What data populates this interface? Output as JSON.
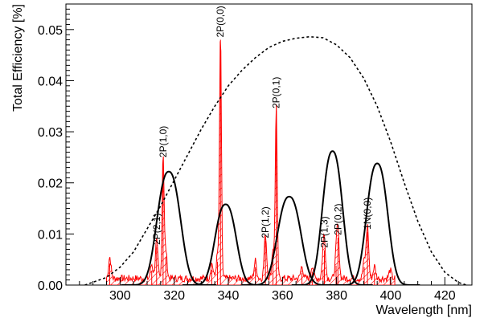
{
  "chart_data": {
    "type": "line",
    "xlabel": "Wavelength [nm]",
    "ylabel": "Total Efficiency [%]",
    "xlim": [
      280,
      430
    ],
    "ylim": [
      0,
      0.055
    ],
    "x_ticks": [
      300,
      320,
      340,
      360,
      380,
      400,
      420
    ],
    "y_ticks": [
      0.0,
      0.01,
      0.02,
      0.03,
      0.04,
      0.05
    ],
    "x_tick_labels": [
      "300",
      "320",
      "340",
      "360",
      "380",
      "400",
      "420"
    ],
    "y_tick_labels": [
      "0.00",
      "0.01",
      "0.02",
      "0.03",
      "0.04",
      "0.05"
    ],
    "grid": false,
    "colors": {
      "spectrum": "#ff0000",
      "filters": "#000000",
      "envelope": "#000000"
    },
    "filter_curves": [
      {
        "center": 318,
        "peak": 0.0222,
        "sigma": 4.2
      },
      {
        "center": 339,
        "peak": 0.0158,
        "sigma": 3.8
      },
      {
        "center": 362.5,
        "peak": 0.0173,
        "sigma": 4.2
      },
      {
        "center": 378.5,
        "peak": 0.0262,
        "sigma": 3.6
      },
      {
        "center": 395,
        "peak": 0.0238,
        "sigma": 3.8
      }
    ],
    "envelope": {
      "style": "dotted",
      "x": [
        287,
        295,
        300,
        305,
        310,
        315,
        320,
        325,
        330,
        335,
        340,
        345,
        350,
        355,
        360,
        365,
        370,
        375,
        380,
        385,
        390,
        395,
        400,
        405,
        410,
        415,
        420,
        425,
        428
      ],
      "y": [
        0.0,
        0.0015,
        0.0035,
        0.0065,
        0.011,
        0.0155,
        0.0205,
        0.0255,
        0.0305,
        0.035,
        0.039,
        0.042,
        0.0445,
        0.0465,
        0.0477,
        0.0483,
        0.0486,
        0.0484,
        0.047,
        0.0445,
        0.0405,
        0.035,
        0.028,
        0.02,
        0.0125,
        0.0065,
        0.0025,
        0.0005,
        0.0
      ]
    },
    "peaks": [
      {
        "label": "2P(2,1)",
        "x": 313.5,
        "y": 0.0074
      },
      {
        "label": "2P(1,0)",
        "x": 315.9,
        "y": 0.0245
      },
      {
        "label": "2P(0,0)",
        "x": 337.1,
        "y": 0.048
      },
      {
        "label": "2P(1,2)",
        "x": 353.7,
        "y": 0.0087
      },
      {
        "label": "2P(0,1)",
        "x": 357.7,
        "y": 0.0341
      },
      {
        "label": "2P(1,3)",
        "x": 375.5,
        "y": 0.0068
      },
      {
        "label": "2P(0,2)",
        "x": 380.5,
        "y": 0.0093
      },
      {
        "label": "1N(0,0)",
        "x": 391.4,
        "y": 0.0104
      }
    ],
    "extra_peaks": [
      {
        "x": 296.2,
        "y": 0.0042
      },
      {
        "x": 311.7,
        "y": 0.0028
      },
      {
        "x": 316.9,
        "y": 0.0055
      },
      {
        "x": 333.9,
        "y": 0.003
      },
      {
        "x": 336.0,
        "y": 0.0046
      },
      {
        "x": 350.0,
        "y": 0.0035
      },
      {
        "x": 356.5,
        "y": 0.0058
      },
      {
        "x": 367.2,
        "y": 0.0024
      },
      {
        "x": 371.0,
        "y": 0.0026
      },
      {
        "x": 375.0,
        "y": 0.003
      },
      {
        "x": 379.8,
        "y": 0.0038
      },
      {
        "x": 390.2,
        "y": 0.0035
      },
      {
        "x": 394.0,
        "y": 0.0024
      },
      {
        "x": 399.8,
        "y": 0.0016
      }
    ]
  }
}
